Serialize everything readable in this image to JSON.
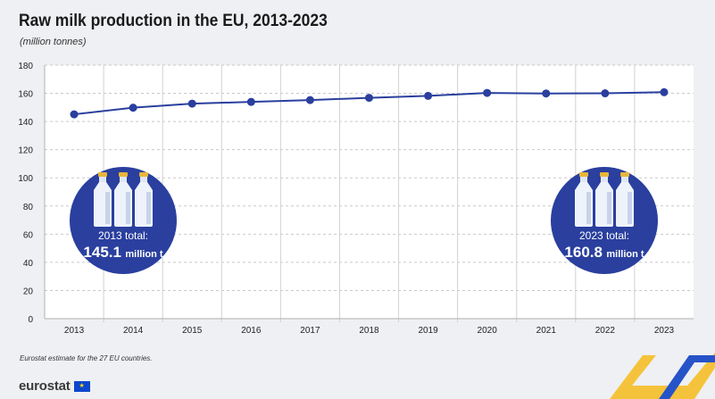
{
  "title": "Raw milk production in the EU, 2013-2023",
  "subtitle": "(million tonnes)",
  "note": "Eurostat estimate for the 27 EU countries.",
  "logo": {
    "text": "eurostat",
    "flag_stars": "★"
  },
  "badges": {
    "left": {
      "label": "2013 total:",
      "value": "145.1",
      "unit": "million t"
    },
    "right": {
      "label": "2023 total:",
      "value": "160.8",
      "unit": "million t"
    }
  },
  "colors": {
    "line": "#2a3f9e",
    "badge": "#2a3f9e",
    "chevron_blue": "#2653c8",
    "chevron_yellow": "#f5c33b"
  },
  "chart_data": {
    "type": "line",
    "x": [
      "2013",
      "2014",
      "2015",
      "2016",
      "2017",
      "2018",
      "2019",
      "2020",
      "2021",
      "2022",
      "2023"
    ],
    "series": [
      {
        "values": [
          145.1,
          149.8,
          152.7,
          153.9,
          155.2,
          156.8,
          158.2,
          160.3,
          159.9,
          160.0,
          160.8
        ]
      }
    ],
    "ylim": [
      0,
      180
    ],
    "yticks": [
      0,
      20,
      40,
      60,
      80,
      100,
      120,
      140,
      160,
      180
    ],
    "grid": true
  }
}
